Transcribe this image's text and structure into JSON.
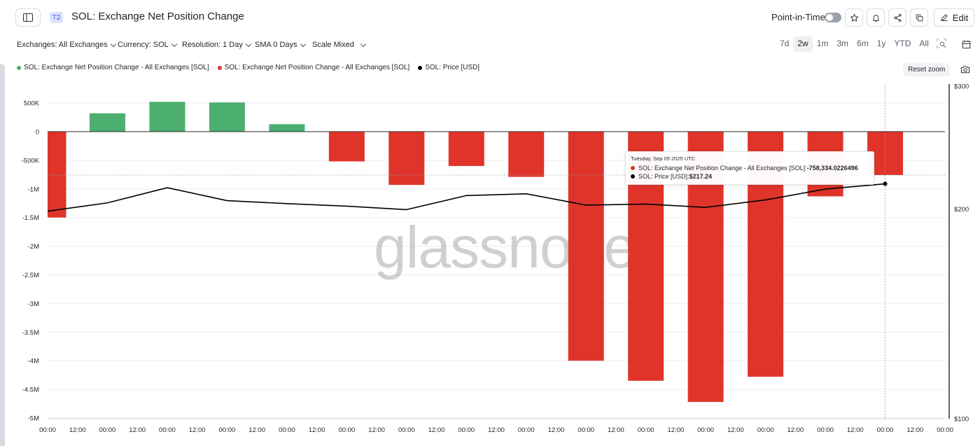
{
  "header": {
    "sidebar_toggle_icon": "sidebar-icon",
    "tier_badge": "T2",
    "title": "SOL: Exchange Net Position Change",
    "point_in_time_label": "Point-in-Time",
    "edit_label": "Edit",
    "icons": [
      "star-icon",
      "bell-icon",
      "share-icon",
      "copy-icon",
      "pencil-icon"
    ]
  },
  "controls": {
    "exchanges": "Exchanges: All Exchanges",
    "currency": "Currency: SOL",
    "resolution": "Resolution: 1 Day",
    "sma": "SMA 0 Days",
    "scale": "Scale Mixed"
  },
  "ranges": [
    "7d",
    "2w",
    "1m",
    "3m",
    "6m",
    "1y",
    "YTD",
    "All"
  ],
  "active_range": "2w",
  "legend": [
    {
      "label": "SOL: Exchange Net Position Change - All Exchanges [SOL]",
      "color": "#4caf6e"
    },
    {
      "label": "SOL: Exchange Net Position Change - All Exchanges [SOL]",
      "color": "#e0342a"
    },
    {
      "label": "SOL: Price [USD]",
      "color": "#000000"
    }
  ],
  "reset_zoom_label": "Reset zoom",
  "watermark": "glassnode",
  "tooltip": {
    "date": "Tuesday, Sep 09 2025 UTC",
    "rows": [
      {
        "label": "SOL: Exchange Net Position Change - All Exchanges [SOL]: ",
        "value": "-758,334.0226496",
        "color": "#e0342a"
      },
      {
        "label": "SOL: Price [USD]: ",
        "value": "$217.24",
        "color": "#000000"
      }
    ]
  },
  "colors": {
    "positive": "#4caf6e",
    "negative": "#e0342a",
    "price": "#000000"
  },
  "chart_data": {
    "type": "bar",
    "x_tick_labels": [
      "00:00",
      "12:00",
      "00:00",
      "12:00",
      "00:00",
      "12:00",
      "00:00",
      "12:00",
      "00:00",
      "12:00",
      "00:00",
      "12:00",
      "00:00",
      "12:00",
      "00:00",
      "12:00",
      "00:00",
      "12:00",
      "00:00",
      "12:00",
      "00:00",
      "12:00",
      "00:00",
      "12:00",
      "00:00",
      "12:00",
      "00:00",
      "12:00",
      "00:00",
      "12:00",
      "00:00"
    ],
    "y_left": {
      "ticks": [
        500000,
        0,
        -500000,
        -1000000,
        -1500000,
        -2000000,
        -2500000,
        -3000000,
        -3500000,
        -4000000,
        -4500000,
        -5000000
      ],
      "tick_labels": [
        "500K",
        "0",
        "-500K",
        "-1M",
        "-1.5M",
        "-2M",
        "-2.5M",
        "-3M",
        "-3.5M",
        "-4M",
        "-4.5M",
        "-5M"
      ],
      "range": [
        -5000000,
        800000
      ]
    },
    "y_right": {
      "ticks": [
        300,
        200,
        100
      ],
      "tick_labels": [
        "$300",
        "$200",
        "$100"
      ],
      "scale": "log",
      "range": [
        100,
        300
      ]
    },
    "series": [
      {
        "name": "SOL: Exchange Net Position Change - All Exchanges [SOL]",
        "type": "bar",
        "values": [
          -1500000,
          320000,
          520000,
          510000,
          130000,
          -520000,
          -930000,
          -600000,
          -790000,
          -4000000,
          -4350000,
          -4720000,
          -4280000,
          -1130000,
          -758334.0226496
        ]
      },
      {
        "name": "SOL: Price [USD]",
        "type": "line",
        "values": [
          198.5,
          204.0,
          214.5,
          205.5,
          203.5,
          201.8,
          199.5,
          209.0,
          210.2,
          202.5,
          203.2,
          201.0,
          206.0,
          213.5,
          217.24
        ]
      }
    ],
    "grid": true,
    "legend_position": "top-left"
  }
}
